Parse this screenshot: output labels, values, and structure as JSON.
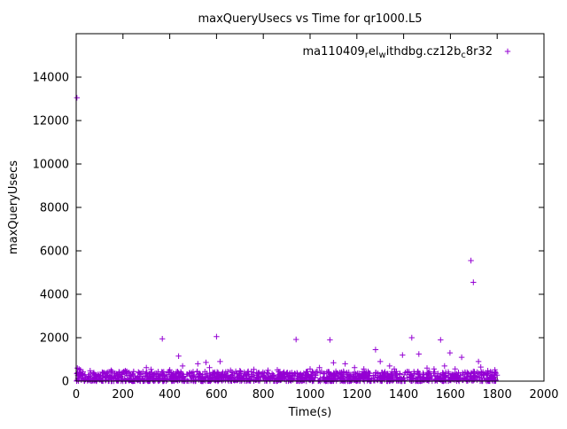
{
  "chart_data": {
    "type": "scatter",
    "title": "maxQueryUsecs vs Time for qr1000.L5",
    "xlabel": "Time(s)",
    "ylabel": "maxQueryUsecs",
    "xlim": [
      0,
      2000
    ],
    "ylim": [
      0,
      16000
    ],
    "xticks": [
      0,
      200,
      400,
      600,
      800,
      1000,
      1200,
      1400,
      1600,
      1800,
      2000
    ],
    "yticks": [
      0,
      2000,
      4000,
      6000,
      8000,
      10000,
      12000,
      14000
    ],
    "grid": false,
    "legend_position": "top-right-inside",
    "marker": "plus",
    "marker_color": "#9400d3",
    "series": [
      {
        "name": "ma110409_rel_withdbg.cz12b_c8r32",
        "legend_segments": [
          {
            "text": "ma110409",
            "sub": false
          },
          {
            "text": "r",
            "sub": true
          },
          {
            "text": "el",
            "sub": false
          },
          {
            "text": "w",
            "sub": true
          },
          {
            "text": "ithdbg.cz12b",
            "sub": false
          },
          {
            "text": "c",
            "sub": true
          },
          {
            "text": "8r32",
            "sub": false
          }
        ],
        "outliers": [
          [
            3,
            13050
          ],
          [
            5,
            600
          ],
          [
            12,
            560
          ],
          [
            18,
            520
          ],
          [
            60,
            480
          ],
          [
            150,
            500
          ],
          [
            210,
            480
          ],
          [
            300,
            620
          ],
          [
            320,
            540
          ],
          [
            368,
            1950
          ],
          [
            400,
            520
          ],
          [
            438,
            1150
          ],
          [
            455,
            700
          ],
          [
            520,
            800
          ],
          [
            555,
            860
          ],
          [
            570,
            620
          ],
          [
            600,
            2050
          ],
          [
            615,
            900
          ],
          [
            660,
            500
          ],
          [
            700,
            480
          ],
          [
            760,
            540
          ],
          [
            820,
            500
          ],
          [
            860,
            520
          ],
          [
            940,
            1920
          ],
          [
            1000,
            560
          ],
          [
            1040,
            620
          ],
          [
            1085,
            1900
          ],
          [
            1100,
            850
          ],
          [
            1150,
            800
          ],
          [
            1190,
            620
          ],
          [
            1230,
            560
          ],
          [
            1280,
            1450
          ],
          [
            1300,
            900
          ],
          [
            1340,
            700
          ],
          [
            1360,
            560
          ],
          [
            1395,
            1200
          ],
          [
            1435,
            2000
          ],
          [
            1465,
            1250
          ],
          [
            1500,
            600
          ],
          [
            1530,
            560
          ],
          [
            1558,
            1900
          ],
          [
            1575,
            700
          ],
          [
            1598,
            1300
          ],
          [
            1620,
            560
          ],
          [
            1648,
            1100
          ],
          [
            1688,
            5550
          ],
          [
            1698,
            4550
          ],
          [
            1720,
            900
          ],
          [
            1730,
            650
          ],
          [
            1760,
            480
          ],
          [
            1790,
            520
          ]
        ],
        "dense_band": {
          "description": "dense scatter band along the x axis",
          "count": 1400,
          "x_range": [
            0,
            1800
          ],
          "y_max": 450,
          "bias_exponent": 1.6,
          "seed": 42
        }
      }
    ]
  }
}
